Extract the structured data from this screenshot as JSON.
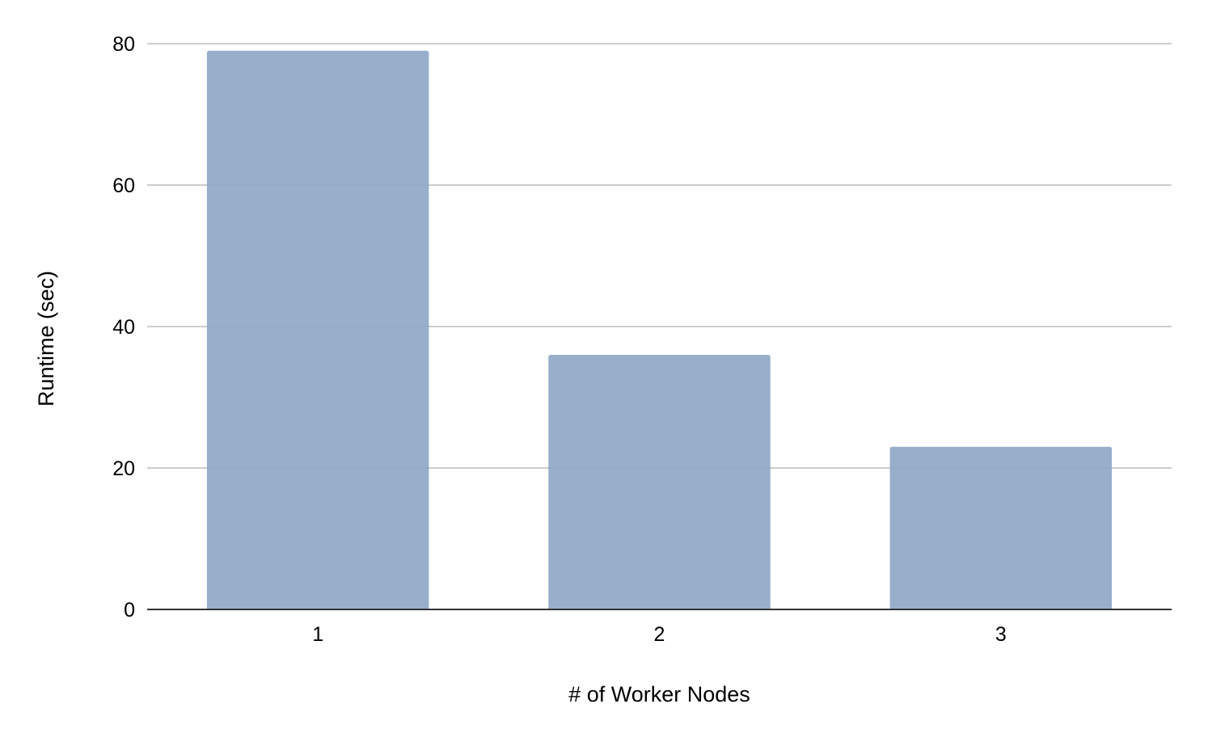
{
  "chart_data": {
    "type": "bar",
    "title": "",
    "xlabel": "# of Worker Nodes",
    "ylabel": "Runtime (sec)",
    "categories": [
      "1",
      "2",
      "3"
    ],
    "values": [
      79,
      36,
      23
    ],
    "ylim": [
      0,
      80
    ],
    "yticks": [
      0,
      20,
      40,
      60,
      80
    ],
    "grid": true,
    "legend": "none",
    "colors": {
      "bar": "#8ea8c6",
      "grid": "#cccccc",
      "baseline": "#333333",
      "text": "#000000"
    }
  }
}
